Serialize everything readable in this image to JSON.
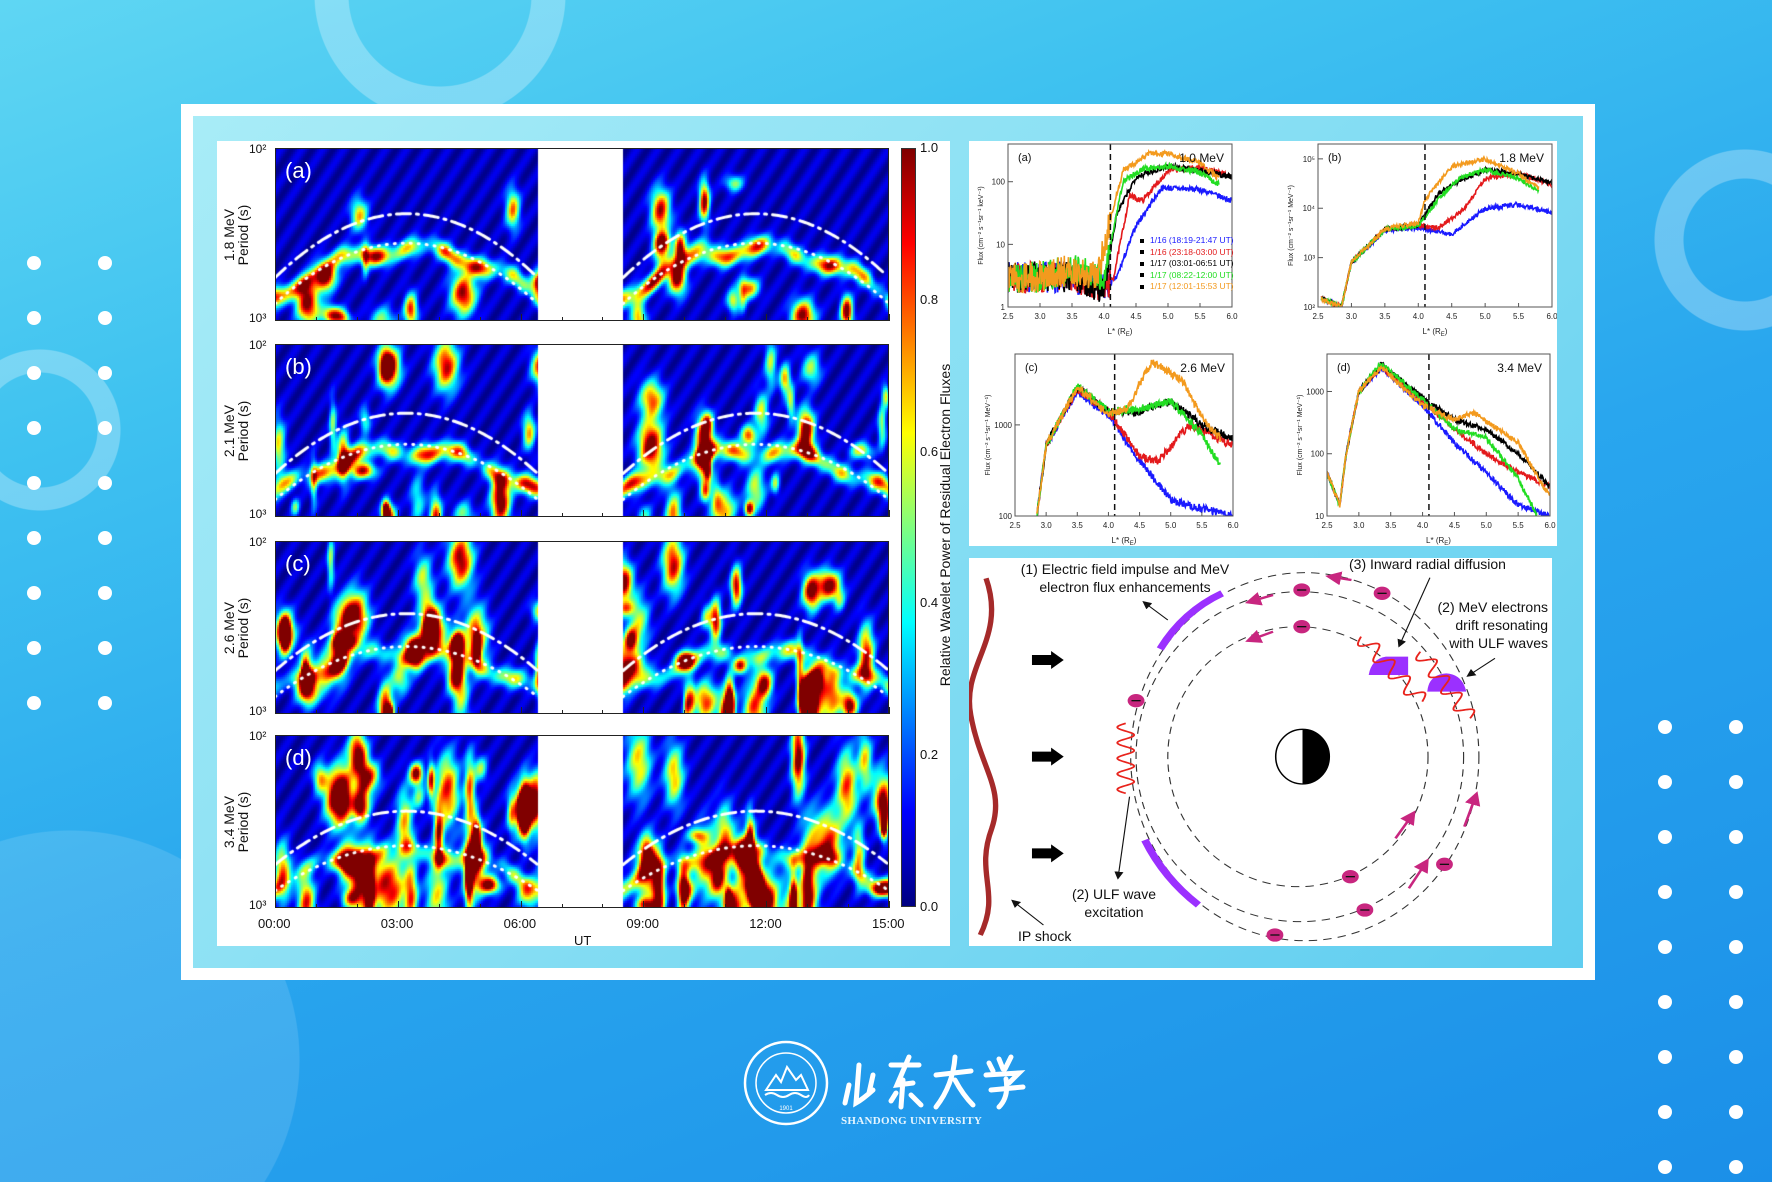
{
  "logo": {
    "chinese_name": "山东大学",
    "english_name": "SHANDONG UNIVERSITY",
    "year": "1901"
  },
  "wavelet_figure": {
    "panels": [
      {
        "label": "(a)",
        "energy": "1.8 MeV",
        "ylabel": "Period (s)"
      },
      {
        "label": "(b)",
        "energy": "2.1 MeV",
        "ylabel": "Period (s)"
      },
      {
        "label": "(c)",
        "energy": "2.6 MeV",
        "ylabel": "Period (s)"
      },
      {
        "label": "(d)",
        "energy": "3.4 MeV",
        "ylabel": "Period (s)"
      }
    ],
    "y_ticks": {
      "top": "10²",
      "bottom": "10³"
    },
    "x_ticks": [
      "00:00",
      "03:00",
      "06:00",
      "09:00",
      "12:00",
      "15:00"
    ],
    "xlabel": "UT",
    "colorbar": {
      "label": "Relative Wavelet Power of Residual Electron Fluxes",
      "ticks": [
        "1.0",
        "0.8",
        "0.6",
        "0.4",
        "0.2",
        "0.0"
      ]
    }
  },
  "flux_figure": {
    "legend": [
      {
        "label": "1/16 (18:19-21:47 UT)",
        "color": "#1a1aff"
      },
      {
        "label": "1/16 (23:18-03:00 UT)",
        "color": "#e31a1c"
      },
      {
        "label": "1/17 (03:01-06:51 UT)",
        "color": "#000000"
      },
      {
        "label": "1/17 (08:22-12:00 UT)",
        "color": "#22dd22"
      },
      {
        "label": "1/17 (12:01-15:53 UT)",
        "color": "#f39a1e"
      }
    ],
    "xlabel": "L* (R",
    "xlabel_sub": "E",
    "xlabel_end": ")"
  },
  "chart_data": [
    {
      "type": "heatmap",
      "title": "",
      "panels": [
        "1.8 MeV",
        "2.1 MeV",
        "2.6 MeV",
        "3.4 MeV"
      ],
      "xlabel": "UT",
      "ylabel": "Period (s)",
      "x_range": [
        "00:00",
        "15:00"
      ],
      "y_ticks": [
        "10²",
        "10³"
      ],
      "colorbar_range": [
        0.0,
        1.0
      ],
      "colormap": "jet",
      "data_gap": [
        "06:25",
        "08:30"
      ]
    },
    {
      "type": "line",
      "label": "(a)",
      "energy": "1.0 MeV",
      "ylabel": "Flux (cm⁻² s⁻¹sr⁻¹ keV⁻¹)",
      "xlabel": "L* (RE)",
      "xlim": [
        2.5,
        6.0
      ],
      "ylim": [
        1,
        400
      ],
      "yscale": "log",
      "y_ticks": [
        "1",
        "10",
        "100"
      ],
      "vline": 4.1,
      "series": [
        {
          "name": "1/16 (18:19-21:47 UT)",
          "x": [
            2.5,
            3.0,
            3.5,
            4.0,
            4.2,
            4.5,
            4.9,
            5.5,
            6.0
          ],
          "y": [
            3,
            3,
            3,
            2,
            3,
            20,
            80,
            75,
            50
          ]
        },
        {
          "name": "1/16 (23:18-03:00 UT)",
          "x": [
            2.5,
            3.0,
            3.5,
            4.0,
            4.15,
            4.4,
            4.6,
            5.0,
            5.5,
            6.0
          ],
          "y": [
            3,
            3,
            3,
            2,
            3,
            60,
            50,
            150,
            170,
            120
          ]
        },
        {
          "name": "1/17 (03:01-06:51 UT)",
          "x": [
            2.5,
            3.0,
            3.5,
            4.0,
            4.2,
            4.5,
            5.0,
            5.5,
            6.0
          ],
          "y": [
            3,
            3,
            3,
            2,
            30,
            120,
            180,
            150,
            120
          ]
        },
        {
          "name": "1/17 (08:22-12:00 UT)",
          "x": [
            2.5,
            3.0,
            3.5,
            4.0,
            4.1,
            4.3,
            4.6,
            5.0,
            5.5,
            5.8
          ],
          "y": [
            3,
            3,
            4,
            3,
            10,
            100,
            160,
            180,
            140,
            90
          ]
        },
        {
          "name": "1/17 (12:01-15:53 UT)",
          "x": [
            2.5,
            3.0,
            3.5,
            3.9,
            4.1,
            4.3,
            4.7,
            5.0,
            5.5,
            5.8
          ],
          "y": [
            3,
            3,
            4,
            3,
            25,
            150,
            280,
            280,
            200,
            110
          ]
        }
      ],
      "annotation": "1.0 MeV"
    },
    {
      "type": "line",
      "label": "(b)",
      "energy": "1.8 MeV",
      "ylabel": "Flux (cm⁻² s⁻¹sr⁻¹ MeV⁻¹)",
      "xlabel": "L* (RE)",
      "xlim": [
        2.5,
        6.0
      ],
      "ylim": [
        100,
        200000
      ],
      "yscale": "log",
      "y_ticks": [
        "10²",
        "10³",
        "10⁴",
        "10⁵"
      ],
      "vline": 4.1,
      "series": [
        {
          "name": "1/16 (18:19-21:47 UT)",
          "x": [
            2.55,
            2.85,
            3.0,
            3.5,
            4.0,
            4.5,
            5.0,
            5.5,
            6.0
          ],
          "y": [
            150,
            100,
            800,
            3500,
            4000,
            3000,
            10000,
            12000,
            8000
          ]
        },
        {
          "name": "1/16 (23:18-03:00 UT)",
          "x": [
            2.55,
            2.85,
            3.0,
            3.5,
            4.0,
            4.3,
            4.7,
            5.0,
            5.5,
            6.0
          ],
          "y": [
            150,
            100,
            800,
            3800,
            4500,
            4000,
            10000,
            40000,
            50000,
            30000
          ]
        },
        {
          "name": "1/17 (03:01-06:51 UT)",
          "x": [
            2.55,
            2.85,
            3.0,
            3.5,
            4.0,
            4.3,
            4.6,
            5.0,
            5.5,
            6.0
          ],
          "y": [
            150,
            100,
            800,
            3800,
            4500,
            20000,
            35000,
            60000,
            50000,
            32000
          ]
        },
        {
          "name": "1/17 (08:22-12:00 UT)",
          "x": [
            2.55,
            2.85,
            3.0,
            3.5,
            4.0,
            4.3,
            4.6,
            5.0,
            5.5,
            5.8
          ],
          "y": [
            150,
            100,
            800,
            3800,
            4500,
            15000,
            40000,
            60000,
            40000,
            22000
          ]
        },
        {
          "name": "1/17 (12:01-15:53 UT)",
          "x": [
            2.55,
            2.85,
            3.0,
            3.5,
            4.0,
            4.1,
            4.5,
            5.0,
            5.5,
            5.8
          ],
          "y": [
            150,
            100,
            800,
            3800,
            5000,
            15000,
            70000,
            100000,
            50000,
            25000
          ]
        }
      ],
      "annotation": "1.8 MeV"
    },
    {
      "type": "line",
      "label": "(c)",
      "energy": "2.6 MeV",
      "ylabel": "Flux (cm⁻² s⁻¹sr⁻¹ MeV⁻¹)",
      "xlabel": "L* (RE)",
      "xlim": [
        2.5,
        6.0
      ],
      "ylim": [
        100,
        6000
      ],
      "yscale": "log",
      "y_ticks": [
        "100",
        "1000"
      ],
      "vline": 4.1,
      "series": [
        {
          "name": "1/16 (18:19-21:47 UT)",
          "x": [
            2.85,
            3.0,
            3.5,
            4.0,
            4.5,
            5.0,
            5.5,
            6.0
          ],
          "y": [
            100,
            600,
            2300,
            1300,
            400,
            150,
            120,
            100
          ]
        },
        {
          "name": "1/16 (23:18-03:00 UT)",
          "x": [
            2.85,
            3.0,
            3.5,
            4.0,
            4.5,
            4.8,
            5.3,
            6.0
          ],
          "y": [
            100,
            600,
            2500,
            1400,
            450,
            400,
            1000,
            600
          ]
        },
        {
          "name": "1/17 (03:01-06:51 UT)",
          "x": [
            2.85,
            3.0,
            3.5,
            4.0,
            4.5,
            5.0,
            5.5,
            6.0
          ],
          "y": [
            100,
            600,
            2600,
            1400,
            1400,
            1800,
            1000,
            700
          ]
        },
        {
          "name": "1/17 (08:22-12:00 UT)",
          "x": [
            2.85,
            3.0,
            3.5,
            4.0,
            4.5,
            5.0,
            5.5,
            5.8
          ],
          "y": [
            100,
            600,
            2700,
            1400,
            1500,
            1800,
            800,
            350
          ]
        },
        {
          "name": "1/17 (12:01-15:53 UT)",
          "x": [
            2.85,
            3.0,
            3.5,
            4.0,
            4.3,
            4.7,
            5.2,
            5.5,
            5.8
          ],
          "y": [
            100,
            600,
            2600,
            1300,
            1500,
            5000,
            3000,
            1200,
            700
          ]
        }
      ],
      "annotation": "2.6 MeV"
    },
    {
      "type": "line",
      "label": "(d)",
      "energy": "3.4 MeV",
      "ylabel": "Flux (cm⁻² s⁻¹sr⁻¹ MeV⁻¹)",
      "xlabel": "L* (RE)",
      "xlim": [
        2.5,
        6.0
      ],
      "ylim": [
        10,
        4000
      ],
      "yscale": "log",
      "y_ticks": [
        "10",
        "100",
        "1000"
      ],
      "vline": 4.1,
      "series": [
        {
          "name": "1/16 (18:19-21:47 UT)",
          "x": [
            2.5,
            2.7,
            2.8,
            3.0,
            3.35,
            4.0,
            4.5,
            5.0,
            5.5,
            6.0
          ],
          "y": [
            50,
            15,
            100,
            1000,
            2400,
            600,
            150,
            50,
            15,
            10
          ]
        },
        {
          "name": "1/16 (23:18-03:00 UT)",
          "x": [
            2.5,
            2.7,
            2.8,
            3.0,
            3.35,
            4.0,
            4.5,
            5.0,
            5.5,
            6.0
          ],
          "y": [
            50,
            15,
            100,
            1000,
            2500,
            700,
            250,
            100,
            50,
            30
          ]
        },
        {
          "name": "1/17 (03:01-06:51 UT)",
          "x": [
            2.5,
            2.7,
            2.8,
            3.0,
            3.35,
            4.0,
            4.5,
            5.0,
            5.5,
            6.0
          ],
          "y": [
            50,
            15,
            100,
            1000,
            2700,
            800,
            350,
            250,
            100,
            30
          ]
        },
        {
          "name": "1/17 (08:22-12:00 UT)",
          "x": [
            2.5,
            2.7,
            2.8,
            3.0,
            3.35,
            4.0,
            4.5,
            5.0,
            5.5,
            5.8
          ],
          "y": [
            50,
            15,
            100,
            1000,
            2800,
            750,
            250,
            180,
            40,
            10
          ]
        },
        {
          "name": "1/17 (12:01-15:53 UT)",
          "x": [
            2.5,
            2.7,
            2.8,
            3.0,
            3.35,
            4.0,
            4.5,
            4.8,
            5.5,
            6.0
          ],
          "y": [
            50,
            15,
            100,
            1000,
            2500,
            600,
            350,
            450,
            150,
            20
          ]
        }
      ],
      "annotation": "3.4 MeV"
    }
  ],
  "diagram": {
    "label_1_line1": "(1) Electric field impulse and MeV",
    "label_1_line2": "electron flux enhancements",
    "label_3": "(3) Inward radial diffusion",
    "label_2a_line1": "(2) MeV electrons",
    "label_2a_line2": "drift resonating",
    "label_2a_line3": "with ULF waves",
    "label_2b_line1": "(2) ULF wave",
    "label_2b_line2": "excitation",
    "label_shock": "IP shock",
    "colors": {
      "shock": "#a52a2a",
      "electron": "#c8267f",
      "arc": "#9b30ff",
      "wave": "#e8231c"
    }
  }
}
